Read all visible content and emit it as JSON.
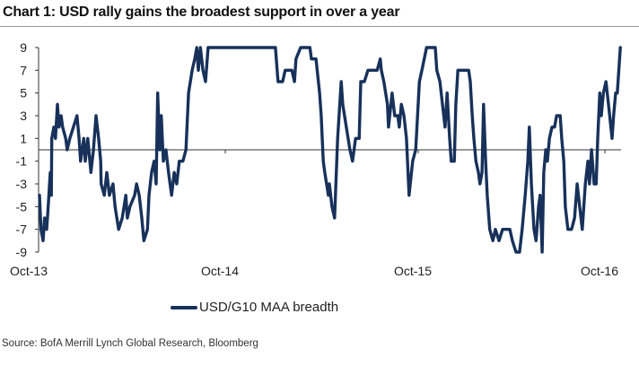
{
  "title": "Chart 1: USD rally gains the broadest support in over a year",
  "source": "Source: BofA Merrill Lynch Global Research, Bloomberg",
  "colors": {
    "line": "#17315a",
    "axis": "#333333",
    "title_rule": "#999999"
  },
  "chart_data": {
    "type": "line",
    "title": "Chart 1: USD rally gains the broadest support in over a year",
    "xlabel": "",
    "ylabel": "",
    "ylim": [
      -9,
      9
    ],
    "xlim": [
      "2013-10-01",
      "2016-11-05"
    ],
    "yticks": [
      "9",
      "7",
      "5",
      "3",
      "1",
      "-1",
      "-3",
      "-5",
      "-7",
      "-9"
    ],
    "xticks": [
      "Oct-13",
      "Oct-14",
      "Oct-15",
      "Oct-16"
    ],
    "grid": false,
    "reference_line": 0,
    "legend": "bottom-center",
    "series": [
      {
        "name": "USD/G10 MAA breadth",
        "x": [
          "2013-10-01",
          "2013-10-04",
          "2013-10-08",
          "2013-10-11",
          "2013-10-15",
          "2013-10-18",
          "2013-10-22",
          "2013-10-24",
          "2013-10-25",
          "2013-10-29",
          "2013-11-01",
          "2013-11-05",
          "2013-11-08",
          "2013-11-12",
          "2013-11-15",
          "2013-11-21",
          "2013-11-24",
          "2013-11-29",
          "2013-12-06",
          "2013-12-13",
          "2013-12-17",
          "2013-12-20",
          "2013-12-26",
          "2013-12-29",
          "2014-01-03",
          "2014-01-09",
          "2014-01-14",
          "2014-01-19",
          "2014-01-24",
          "2014-01-28",
          "2014-01-29",
          "2014-02-04",
          "2014-02-09",
          "2014-02-14",
          "2014-02-21",
          "2014-02-25",
          "2014-03-04",
          "2014-03-11",
          "2014-03-18",
          "2014-03-21",
          "2014-03-26",
          "2014-04-04",
          "2014-04-08",
          "2014-04-13",
          "2014-04-18",
          "2014-04-22",
          "2014-04-29",
          "2014-05-02",
          "2014-05-07",
          "2014-05-12",
          "2014-05-16",
          "2014-05-19",
          "2014-05-23",
          "2014-05-26",
          "2014-05-30",
          "2014-06-04",
          "2014-06-09",
          "2014-06-15",
          "2014-06-20",
          "2014-06-25",
          "2014-06-30",
          "2014-07-07",
          "2014-07-13",
          "2014-07-18",
          "2014-07-25",
          "2014-07-30",
          "2014-08-03",
          "2014-08-06",
          "2014-08-10",
          "2014-08-15",
          "2014-08-20",
          "2014-08-25",
          "2015-01-03",
          "2015-01-08",
          "2015-01-17",
          "2015-01-22",
          "2015-02-04",
          "2015-02-09",
          "2015-02-12",
          "2015-02-21",
          "2015-03-11",
          "2015-03-14",
          "2015-03-23",
          "2015-03-30",
          "2015-04-02",
          "2015-04-06",
          "2015-04-09",
          "2015-04-16",
          "2015-04-18",
          "2015-04-23",
          "2015-04-28",
          "2015-05-04",
          "2015-05-11",
          "2015-05-14",
          "2015-05-21",
          "2015-05-28",
          "2015-06-02",
          "2015-06-08",
          "2015-06-15",
          "2015-06-18",
          "2015-06-25",
          "2015-07-02",
          "2015-07-09",
          "2015-07-20",
          "2015-07-26",
          "2015-07-28",
          "2015-08-02",
          "2015-08-09",
          "2015-08-11",
          "2015-08-18",
          "2015-08-23",
          "2015-08-29",
          "2015-09-01",
          "2015-09-05",
          "2015-09-10",
          "2015-09-15",
          "2015-09-20",
          "2015-09-27",
          "2015-10-03",
          "2015-10-10",
          "2015-10-15",
          "2015-10-24",
          "2015-11-10",
          "2015-11-13",
          "2015-11-19",
          "2015-11-24",
          "2015-11-29",
          "2015-12-03",
          "2015-12-08",
          "2015-12-11",
          "2015-12-17",
          "2015-12-20",
          "2015-12-24",
          "2016-01-01",
          "2016-01-14",
          "2016-01-17",
          "2016-01-21",
          "2016-01-24",
          "2016-01-28",
          "2016-02-02",
          "2016-02-05",
          "2016-02-09",
          "2016-02-12",
          "2016-02-16",
          "2016-02-19",
          "2016-02-24",
          "2016-03-01",
          "2016-03-06",
          "2016-03-13",
          "2016-03-20",
          "2016-04-03",
          "2016-04-08",
          "2016-04-15",
          "2016-04-22",
          "2016-04-27",
          "2016-05-03",
          "2016-05-08",
          "2016-05-11",
          "2016-05-15",
          "2016-05-20",
          "2016-05-24",
          "2016-05-29",
          "2016-06-01",
          "2016-06-05",
          "2016-06-08",
          "2016-06-12",
          "2016-06-15",
          "2016-06-19",
          "2016-06-24",
          "2016-06-29",
          "2016-07-03",
          "2016-07-10",
          "2016-07-13",
          "2016-07-17",
          "2016-07-20",
          "2016-07-25",
          "2016-08-01",
          "2016-08-07",
          "2016-08-12",
          "2016-08-17",
          "2016-08-22",
          "2016-08-28",
          "2016-09-02",
          "2016-09-05",
          "2016-09-09",
          "2016-09-14",
          "2016-09-18",
          "2016-09-21",
          "2016-09-25",
          "2016-09-28",
          "2016-10-02",
          "2016-10-07",
          "2016-10-12",
          "2016-10-19",
          "2016-10-22",
          "2016-10-26",
          "2016-10-29",
          "2016-11-04"
        ],
        "y": [
          -4,
          -7,
          -8,
          -6,
          -7,
          -5,
          -2,
          -4,
          1,
          2,
          1,
          4,
          2,
          3,
          2,
          1,
          0,
          1,
          2,
          3,
          1,
          -1,
          1,
          -1,
          1,
          -2,
          0,
          3,
          1,
          -1,
          -3,
          -4,
          -2,
          -4,
          -3,
          -5,
          -7,
          -6,
          -4,
          -6,
          -5,
          -4,
          -3,
          -4,
          -6,
          -8,
          -7,
          -4,
          -2,
          -1,
          -3,
          5,
          0,
          3,
          -1,
          0,
          -2,
          -4,
          -2,
          -3,
          -1,
          -1,
          0,
          5,
          7,
          8,
          9,
          7,
          9,
          7,
          6,
          9,
          9,
          6,
          6,
          7,
          7,
          6,
          8,
          9,
          9,
          8,
          8,
          5,
          3,
          -1,
          -2,
          -4,
          -3,
          -5,
          -6,
          1,
          6,
          4,
          2,
          0,
          -1,
          1,
          1,
          6,
          6,
          7,
          7,
          7,
          8,
          7,
          6,
          4,
          2,
          5,
          3,
          3,
          2,
          4,
          3,
          1,
          -4,
          -1,
          0,
          6,
          7,
          9,
          9,
          7,
          6,
          4,
          2,
          5,
          1,
          -1,
          -1,
          4,
          7,
          7,
          7,
          6,
          3,
          1,
          -1,
          -2,
          -3,
          -2,
          4,
          -1,
          -4,
          -7,
          -8,
          -7,
          -8,
          -7,
          -7,
          -8,
          -9,
          -9,
          -7,
          -4,
          -1,
          2,
          -3,
          -7,
          -8,
          -5,
          -4,
          -9,
          -2,
          0,
          -1,
          1,
          2,
          2,
          3,
          3,
          1,
          -1,
          -5,
          -7,
          -7,
          -6,
          -3,
          -5,
          -7,
          -3,
          -1,
          -3,
          0,
          -3,
          -3,
          1,
          5,
          3,
          5,
          6,
          4,
          1,
          3,
          5,
          5,
          9
        ]
      }
    ]
  },
  "legend": {
    "label": "USD/G10 MAA breadth"
  }
}
